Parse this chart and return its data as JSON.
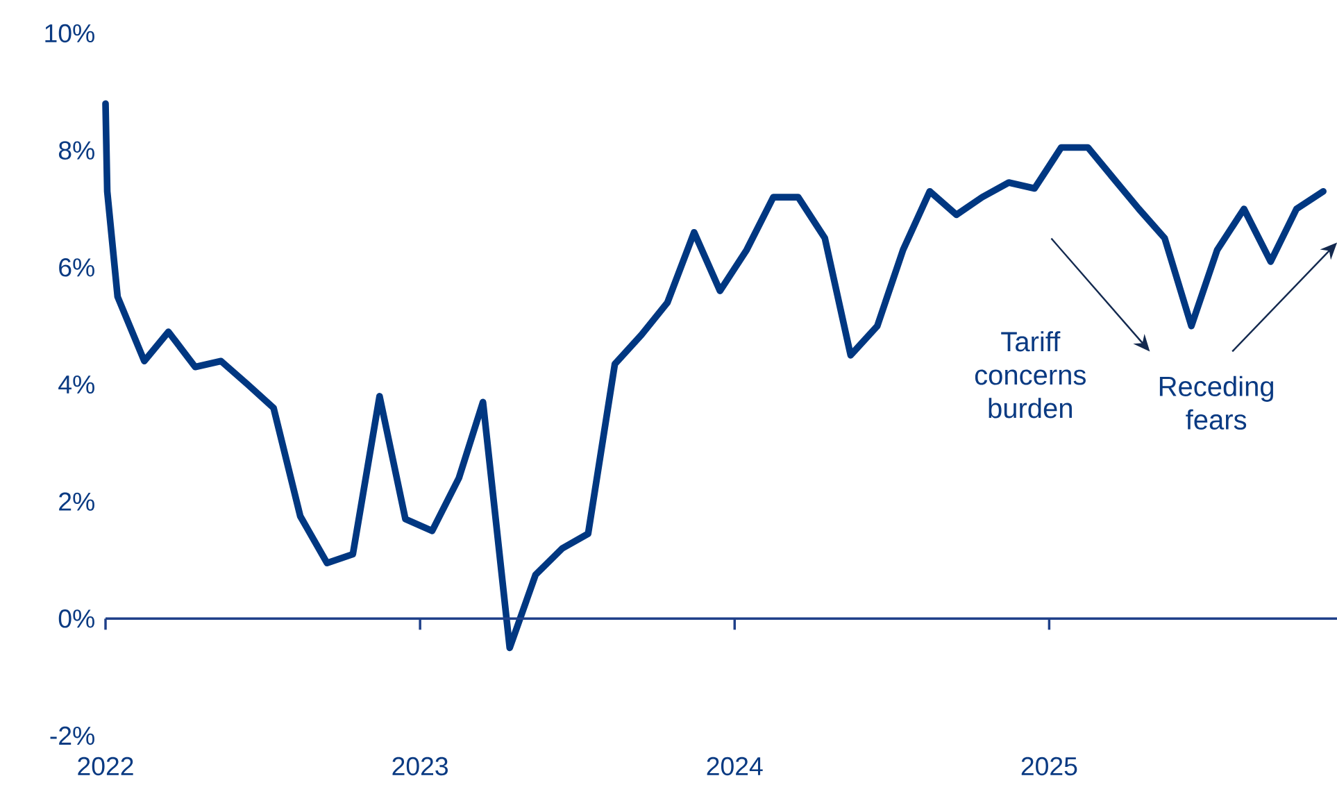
{
  "chart_data": {
    "type": "line",
    "x": [
      "2022-01-01",
      "2022-01-03",
      "2022-01-15",
      "2022-02-15",
      "2022-03-15",
      "2022-04-15",
      "2022-05-15",
      "2022-06-15",
      "2022-07-15",
      "2022-08-15",
      "2022-09-15",
      "2022-10-15",
      "2022-11-15",
      "2022-12-15",
      "2023-01-15",
      "2023-02-15",
      "2023-03-15",
      "2023-04-15",
      "2023-05-15",
      "2023-06-15",
      "2023-07-15",
      "2023-08-15",
      "2023-09-15",
      "2023-10-15",
      "2023-11-15",
      "2023-12-15",
      "2024-01-15",
      "2024-02-15",
      "2024-03-15",
      "2024-04-15",
      "2024-05-15",
      "2024-06-15",
      "2024-07-15",
      "2024-08-15",
      "2024-09-15",
      "2024-10-15",
      "2024-11-15",
      "2024-12-15",
      "2025-01-15",
      "2025-02-15",
      "2025-03-15",
      "2025-04-15",
      "2025-05-15",
      "2025-06-15",
      "2025-07-15",
      "2025-08-15",
      "2025-09-15",
      "2025-10-15",
      "2025-11-15"
    ],
    "series": [
      {
        "color": "#003781",
        "values": [
          8.8,
          7.3,
          5.5,
          4.4,
          4.9,
          4.3,
          4.4,
          4.0,
          3.6,
          1.75,
          0.95,
          1.1,
          3.8,
          1.7,
          1.5,
          2.4,
          3.7,
          -0.5,
          0.75,
          1.2,
          1.45,
          4.35,
          4.85,
          5.4,
          6.6,
          5.6,
          6.3,
          7.2,
          7.2,
          6.5,
          4.5,
          5.0,
          6.3,
          7.3,
          6.9,
          7.2,
          7.45,
          7.35,
          8.05,
          8.05,
          7.55,
          7.0,
          6.5,
          5.0,
          6.3,
          7.0,
          6.1,
          7.0,
          7.3
        ]
      }
    ],
    "xlim": [
      "2022-01-01",
      "2025-12-01"
    ],
    "ylim": [
      -2,
      10
    ],
    "xticks": [
      {
        "value": "2022-01-01",
        "label": "2022"
      },
      {
        "value": "2023-01-01",
        "label": "2023"
      },
      {
        "value": "2024-01-01",
        "label": "2024"
      },
      {
        "value": "2025-01-01",
        "label": "2025"
      }
    ],
    "yticks": [
      {
        "value": -2,
        "label": "-2%"
      },
      {
        "value": 0,
        "label": "0%"
      },
      {
        "value": 2,
        "label": "2%"
      },
      {
        "value": 4,
        "label": "4%"
      },
      {
        "value": 6,
        "label": "6%"
      },
      {
        "value": 8,
        "label": "8%"
      },
      {
        "value": 10,
        "label": "10%"
      }
    ],
    "ref_lines": [
      {
        "axis": "y",
        "value": 0,
        "color": "#1f4089"
      }
    ],
    "annotations": [
      "Tariff concerns burden",
      "Receding fears"
    ],
    "grid": false,
    "legend": false,
    "marker": "none",
    "line_style": "solid"
  }
}
